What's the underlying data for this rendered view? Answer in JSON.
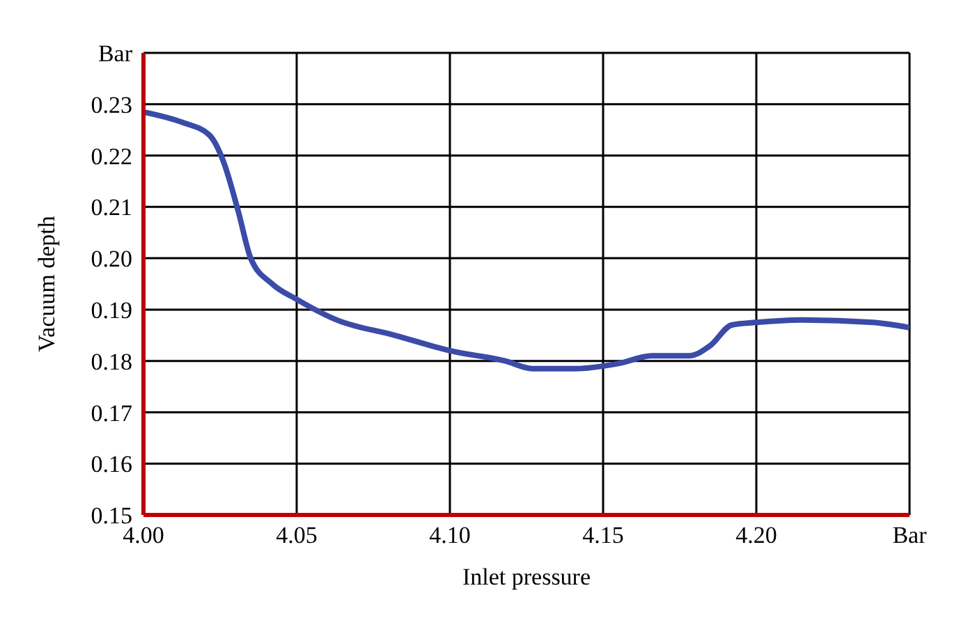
{
  "chart_data": {
    "type": "line",
    "xlabel": "Inlet pressure",
    "ylabel": "Vacuum depth",
    "x": [
      4.0,
      4.0125,
      4.0215,
      4.026,
      4.031,
      4.035,
      4.042,
      4.05,
      4.063,
      4.082,
      4.1,
      4.118,
      4.127,
      4.141,
      4.155,
      4.166,
      4.178,
      4.185,
      4.192,
      4.2,
      4.215,
      4.238,
      4.25
    ],
    "series": [
      {
        "color": "#3b4ba8",
        "values": [
          0.2285,
          0.2265,
          0.224,
          0.219,
          0.209,
          0.2,
          0.195,
          0.192,
          0.188,
          0.185,
          0.182,
          0.18,
          0.1785,
          0.1785,
          0.1795,
          0.181,
          0.181,
          0.183,
          0.187,
          0.1875,
          0.188,
          0.1875,
          0.1865
        ]
      }
    ],
    "xlim": [
      4.0,
      4.25
    ],
    "xticks": [
      {
        "value": 4.0,
        "label": "4.00"
      },
      {
        "value": 4.05,
        "label": "4.05"
      },
      {
        "value": 4.1,
        "label": "4.10"
      },
      {
        "value": 4.15,
        "label": "4.15"
      },
      {
        "value": 4.2,
        "label": "4.20"
      },
      {
        "value": 4.25,
        "label": "Bar"
      }
    ],
    "ylim": [
      0.15,
      0.24
    ],
    "yticks": [
      {
        "value": 0.15,
        "label": "0.15"
      },
      {
        "value": 0.16,
        "label": "0.16"
      },
      {
        "value": 0.17,
        "label": "0.17"
      },
      {
        "value": 0.18,
        "label": "0.18"
      },
      {
        "value": 0.19,
        "label": "0.19"
      },
      {
        "value": 0.2,
        "label": "0.20"
      },
      {
        "value": 0.21,
        "label": "0.21"
      },
      {
        "value": 0.22,
        "label": "0.22"
      },
      {
        "value": 0.23,
        "label": "0.23"
      },
      {
        "value": 0.24,
        "label": "Bar"
      }
    ],
    "grid": true,
    "marker": "none",
    "line_style": "solid"
  }
}
